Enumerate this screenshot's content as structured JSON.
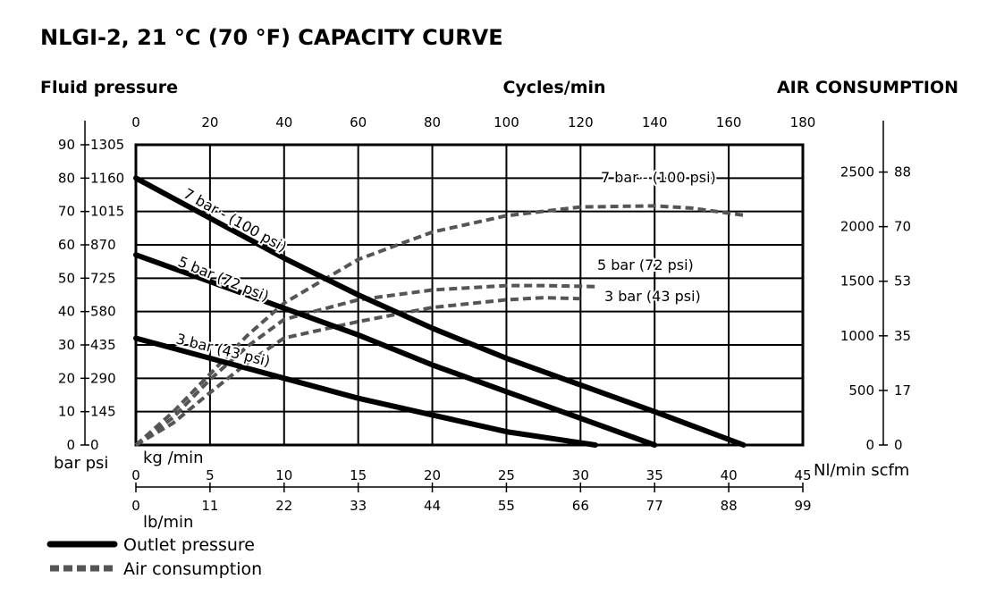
{
  "chart_data": {
    "type": "line",
    "title": "NLGI-2, 21 °C (70 °F) CAPACITY CURVE",
    "left_axis": {
      "label": "Fluid pressure",
      "unit_label": "bar psi",
      "range_bar": [
        0,
        90
      ],
      "ticks_bar": [
        "0",
        "10",
        "20",
        "30",
        "40",
        "50",
        "60",
        "70",
        "80",
        "90"
      ],
      "ticks_psi": [
        "0",
        "145",
        "290",
        "435",
        "580",
        "725",
        "870",
        "1015",
        "1160",
        "1305"
      ]
    },
    "top_axis": {
      "label": "Cycles/min",
      "range": [
        0,
        180
      ],
      "ticks": [
        "0",
        "20",
        "40",
        "60",
        "80",
        "100",
        "120",
        "140",
        "160",
        "180"
      ]
    },
    "right_axis": {
      "label": "AIR CONSUMPTION",
      "unit_label": "Nl/min scfm",
      "range_nl": [
        0,
        2750
      ],
      "ticks_nl": [
        0,
        500,
        1000,
        1500,
        2000,
        2500
      ],
      "ticks_nl_labels": [
        "0",
        "500",
        "1000",
        "1500",
        "2000",
        "2500"
      ],
      "ticks_scfm": [
        "0",
        "17",
        "35",
        "53",
        "70",
        "88"
      ]
    },
    "bottom_axis_kg": {
      "label": "kg /min",
      "range": [
        0,
        45
      ],
      "ticks": [
        "0",
        "5",
        "10",
        "15",
        "20",
        "25",
        "30",
        "35",
        "40",
        "45"
      ]
    },
    "bottom_axis_lb": {
      "label": "lb/min",
      "range": [
        0,
        99
      ],
      "ticks": [
        "0",
        "11",
        "22",
        "33",
        "44",
        "55",
        "66",
        "77",
        "88",
        "99"
      ]
    },
    "grid": true,
    "outlet_pressure_series": [
      {
        "label": "7 bar - (100 psi)",
        "x_kg_min": [
          0,
          5,
          10,
          15,
          20,
          25,
          30,
          35,
          41
        ],
        "y_bar": [
          80,
          68,
          56,
          45,
          35,
          26,
          18,
          10,
          0
        ]
      },
      {
        "label": "5 bar (72 psi)",
        "x_kg_min": [
          0,
          5,
          10,
          15,
          20,
          25,
          30,
          35
        ],
        "y_bar": [
          57,
          49,
          41,
          33,
          24,
          16,
          8,
          0
        ]
      },
      {
        "label": "3 bar (43 psi)",
        "x_kg_min": [
          0,
          5,
          10,
          15,
          20,
          25,
          31
        ],
        "y_bar": [
          32,
          26,
          20,
          14,
          9,
          4,
          0
        ]
      }
    ],
    "air_consumption_series": [
      {
        "label": "7 bar - (100 psi)",
        "x_cycles_min": [
          0,
          10,
          20,
          30,
          40,
          60,
          80,
          100,
          120,
          140,
          150,
          165
        ],
        "y_nl_min": [
          0,
          300,
          650,
          1000,
          1300,
          1700,
          1950,
          2100,
          2180,
          2190,
          2170,
          2100
        ]
      },
      {
        "label": "5 bar (72 psi)",
        "x_cycles_min": [
          0,
          10,
          20,
          30,
          40,
          60,
          80,
          100,
          110,
          125
        ],
        "y_nl_min": [
          0,
          250,
          600,
          900,
          1150,
          1330,
          1420,
          1460,
          1460,
          1450
        ]
      },
      {
        "label": "3 bar (43 psi)",
        "x_cycles_min": [
          0,
          10,
          20,
          30,
          40,
          60,
          80,
          100,
          110,
          120
        ],
        "y_nl_min": [
          0,
          200,
          480,
          750,
          980,
          1130,
          1260,
          1330,
          1350,
          1340
        ]
      }
    ],
    "legend": {
      "placement": "bottom-left",
      "items": [
        {
          "label": "Outlet pressure",
          "style": "solid"
        },
        {
          "label": "Air consumption",
          "style": "dashed"
        }
      ]
    },
    "colors": {
      "outlet": "#000000",
      "air": "#555555",
      "grid": "#000000"
    }
  }
}
